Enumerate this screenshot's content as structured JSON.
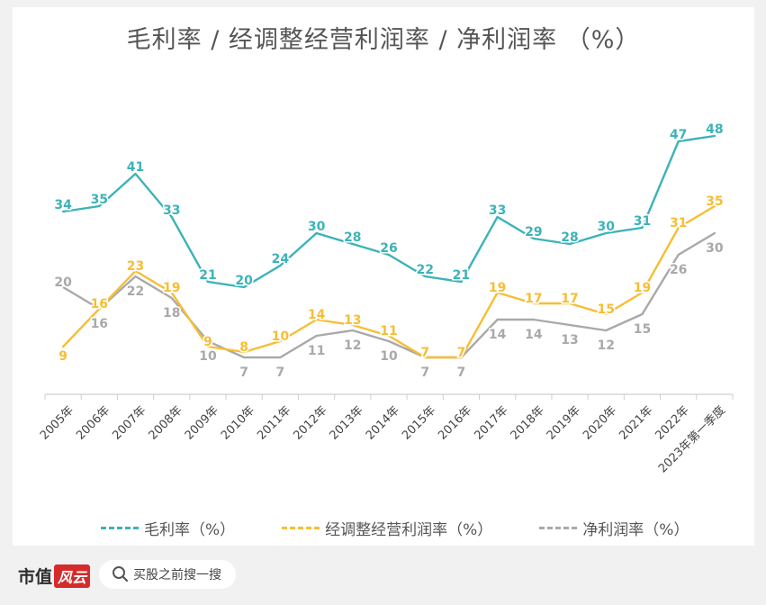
{
  "title": "毛利率 / 经调整经营利润率 / 净利润率 （%）",
  "colors": {
    "teal": "#3BB3B9",
    "gold": "#F7BE33",
    "gray": "#A9A9A9"
  },
  "chart_data": {
    "type": "line",
    "title": "毛利率 / 经调整经营利润率 / 净利润率 （%）",
    "xlabel": "",
    "ylabel": "",
    "grid": false,
    "legend_position": "bottom",
    "categories": [
      "2005年",
      "2006年",
      "2007年",
      "2008年",
      "2009年",
      "2010年",
      "2011年",
      "2012年",
      "2013年",
      "2014年",
      "2015年",
      "2016年",
      "2017年",
      "2018年",
      "2019年",
      "2020年",
      "2021年",
      "2022年",
      "2023年第一季度"
    ],
    "series": [
      {
        "name": "毛利率（%）",
        "color": "#3BB3B9",
        "values": [
          34,
          35,
          41,
          33,
          21,
          20,
          24,
          30,
          28,
          26,
          22,
          21,
          33,
          29,
          28,
          30,
          31,
          47,
          48
        ]
      },
      {
        "name": "经调整经营利润率（%）",
        "color": "#F7BE33",
        "values": [
          9,
          16,
          23,
          19,
          9,
          8,
          10,
          14,
          13,
          11,
          7,
          7,
          19,
          17,
          17,
          15,
          19,
          31,
          35
        ]
      },
      {
        "name": "净利润率（%）",
        "color": "#A9A9A9",
        "values": [
          20,
          16,
          22,
          18,
          10,
          7,
          7,
          11,
          12,
          10,
          7,
          7,
          14,
          14,
          13,
          12,
          15,
          26,
          30
        ]
      }
    ]
  },
  "footer": {
    "brand_text": "市值",
    "brand_mark": "风云",
    "search_placeholder": "买股之前搜一搜"
  }
}
